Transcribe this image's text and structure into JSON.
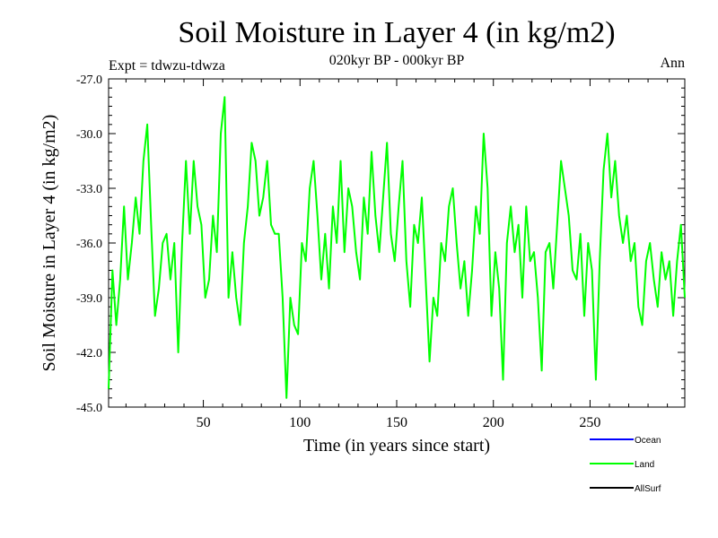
{
  "chart_data": {
    "type": "line",
    "title": "Soil Moisture in Layer 4 (in kg/m2)",
    "subtitle": "020kyr BP - 000kyr BP",
    "expt_label": "Expt = tdwzu-tdwza",
    "season_label": "Ann",
    "xlabel": "Time (in years since start)",
    "ylabel": "Soil Moisture in Layer 4 (in kg/m2)",
    "xlim": [
      1,
      299
    ],
    "ylim": [
      -45.0,
      -27.0
    ],
    "x_ticks": [
      50,
      100,
      150,
      200,
      250
    ],
    "x_tick_labels": [
      "50",
      "100",
      "150",
      "200",
      "250"
    ],
    "y_ticks": [
      -45.0,
      -42.0,
      -39.0,
      -36.0,
      -33.0,
      -30.0,
      -27.0
    ],
    "y_tick_labels": [
      "-45.0",
      "-42.0",
      "-39.0",
      "-36.0",
      "-33.0",
      "-30.0",
      "-27.0"
    ],
    "legend": [
      {
        "name": "Ocean",
        "color": "#0000ff"
      },
      {
        "name": "Land",
        "color": "#00ff00"
      },
      {
        "name": "AllSurf",
        "color": "#000000"
      }
    ],
    "series": [
      {
        "name": "Land",
        "color": "#00ff00",
        "x": [
          1,
          3,
          5,
          7,
          9,
          11,
          13,
          15,
          17,
          19,
          21,
          23,
          25,
          27,
          29,
          31,
          33,
          35,
          37,
          39,
          41,
          43,
          45,
          47,
          49,
          51,
          53,
          55,
          57,
          59,
          61,
          63,
          65,
          67,
          69,
          71,
          73,
          75,
          77,
          79,
          81,
          83,
          85,
          87,
          89,
          91,
          93,
          95,
          97,
          99,
          101,
          103,
          105,
          107,
          109,
          111,
          113,
          115,
          117,
          119,
          121,
          123,
          125,
          127,
          129,
          131,
          133,
          135,
          137,
          139,
          141,
          143,
          145,
          147,
          149,
          151,
          153,
          155,
          157,
          159,
          161,
          163,
          165,
          167,
          169,
          171,
          173,
          175,
          177,
          179,
          181,
          183,
          185,
          187,
          189,
          191,
          193,
          195,
          197,
          199,
          201,
          203,
          205,
          207,
          209,
          211,
          213,
          215,
          217,
          219,
          221,
          223,
          225,
          227,
          229,
          231,
          233,
          235,
          237,
          239,
          241,
          243,
          245,
          247,
          249,
          251,
          253,
          255,
          257,
          259,
          261,
          263,
          265,
          267,
          269,
          271,
          273,
          275,
          277,
          279,
          281,
          283,
          285,
          287,
          289,
          291,
          293,
          295,
          297,
          299
        ],
        "values": [
          -44.0,
          -37.5,
          -40.5,
          -38.0,
          -34.0,
          -38.0,
          -36.0,
          -33.5,
          -35.5,
          -31.5,
          -29.5,
          -35.0,
          -40.0,
          -38.5,
          -36.0,
          -35.5,
          -38.0,
          -36.0,
          -42.0,
          -36.0,
          -31.5,
          -35.5,
          -31.5,
          -34.0,
          -35.0,
          -39.0,
          -38.0,
          -34.5,
          -36.5,
          -30.0,
          -28.0,
          -39.0,
          -36.5,
          -39.0,
          -40.5,
          -36.0,
          -34.0,
          -30.5,
          -31.5,
          -34.5,
          -33.5,
          -31.5,
          -35.0,
          -35.5,
          -35.5,
          -39.0,
          -44.5,
          -39.0,
          -40.5,
          -41.0,
          -36.0,
          -37.0,
          -33.0,
          -31.5,
          -34.5,
          -38.0,
          -35.5,
          -38.5,
          -34.0,
          -36.0,
          -31.5,
          -36.5,
          -33.0,
          -34.0,
          -36.5,
          -38.0,
          -33.5,
          -35.5,
          -31.0,
          -34.5,
          -36.5,
          -33.5,
          -30.5,
          -35.5,
          -37.0,
          -34.0,
          -31.5,
          -37.0,
          -39.5,
          -35.0,
          -36.0,
          -33.5,
          -38.0,
          -42.5,
          -39.0,
          -40.0,
          -36.0,
          -37.0,
          -34.0,
          -33.0,
          -36.0,
          -38.5,
          -37.0,
          -40.0,
          -37.5,
          -34.0,
          -35.5,
          -30.0,
          -33.0,
          -40.0,
          -36.5,
          -38.5,
          -43.5,
          -36.0,
          -34.0,
          -36.5,
          -35.0,
          -39.0,
          -34.0,
          -37.0,
          -36.5,
          -39.0,
          -43.0,
          -36.5,
          -36.0,
          -38.5,
          -35.0,
          -31.5,
          -33.0,
          -34.5,
          -37.5,
          -38.0,
          -35.5,
          -40.0,
          -36.0,
          -37.5,
          -43.5,
          -37.0,
          -32.0,
          -30.0,
          -33.5,
          -31.5,
          -34.5,
          -36.0,
          -34.5,
          -37.0,
          -36.0,
          -39.5,
          -40.5,
          -37.0,
          -36.0,
          -38.0,
          -39.5,
          -36.5,
          -38.0,
          -37.0,
          -40.0,
          -37.0,
          -35.0,
          -39.0
        ]
      }
    ]
  }
}
